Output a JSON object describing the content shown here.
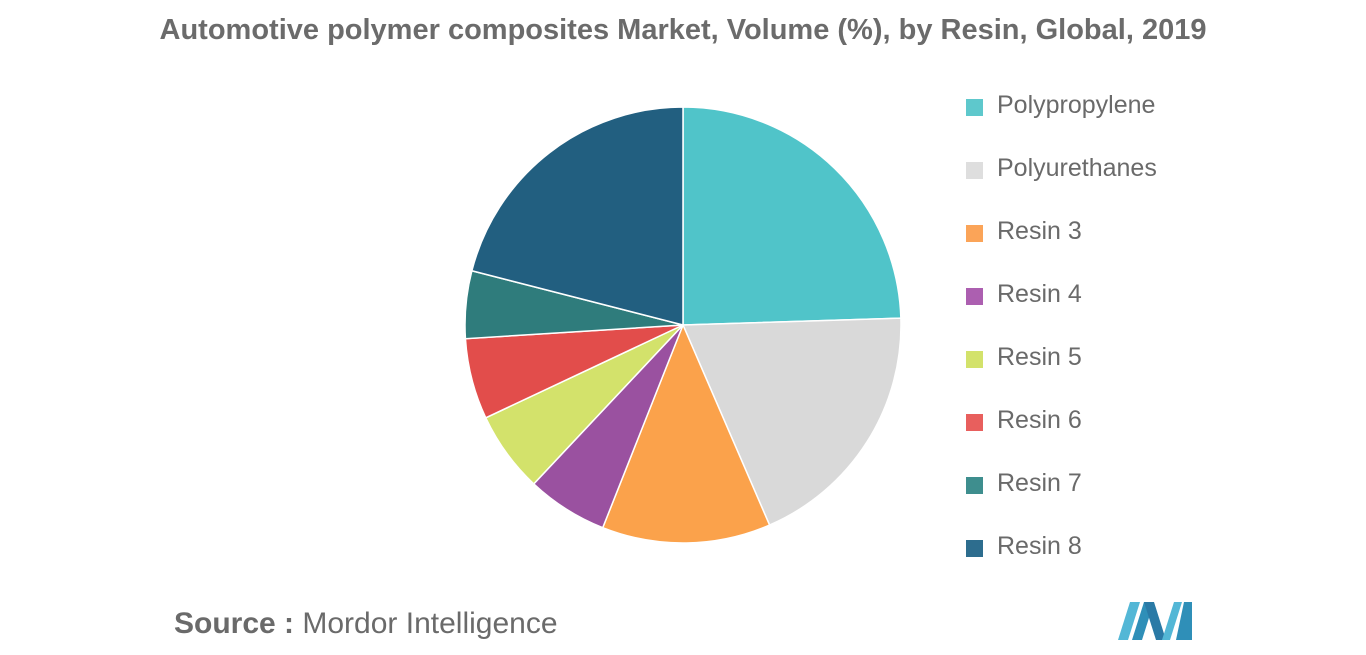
{
  "chart_data": {
    "type": "pie",
    "title": "Automotive polymer composites Market, Volume (%), by Resin, Global, 2019",
    "categories": [
      "Polypropylene",
      "Polyurethanes",
      "Resin 3",
      "Resin 4",
      "Resin 5",
      "Resin 6",
      "Resin 7",
      "Resin 8"
    ],
    "values": [
      24.5,
      19,
      12.5,
      6,
      6,
      6,
      5,
      21
    ],
    "colors": [
      "#50c4c9",
      "#d9d9d9",
      "#fba24b",
      "#9a51a0",
      "#d3e26b",
      "#e24d4b",
      "#2f7c7c",
      "#225f80"
    ],
    "legend_colors": [
      "#5ec8cc",
      "#dedede",
      "#fba458",
      "#ac5fb0",
      "#d3e26b",
      "#e85f5d",
      "#3e8e8e",
      "#2d6d8e"
    ],
    "legend_position": "right"
  },
  "source": {
    "label": "Source :",
    "value": "Mordor Intelligence"
  },
  "logo": {
    "icon": "mordor-intelligence-logo"
  }
}
